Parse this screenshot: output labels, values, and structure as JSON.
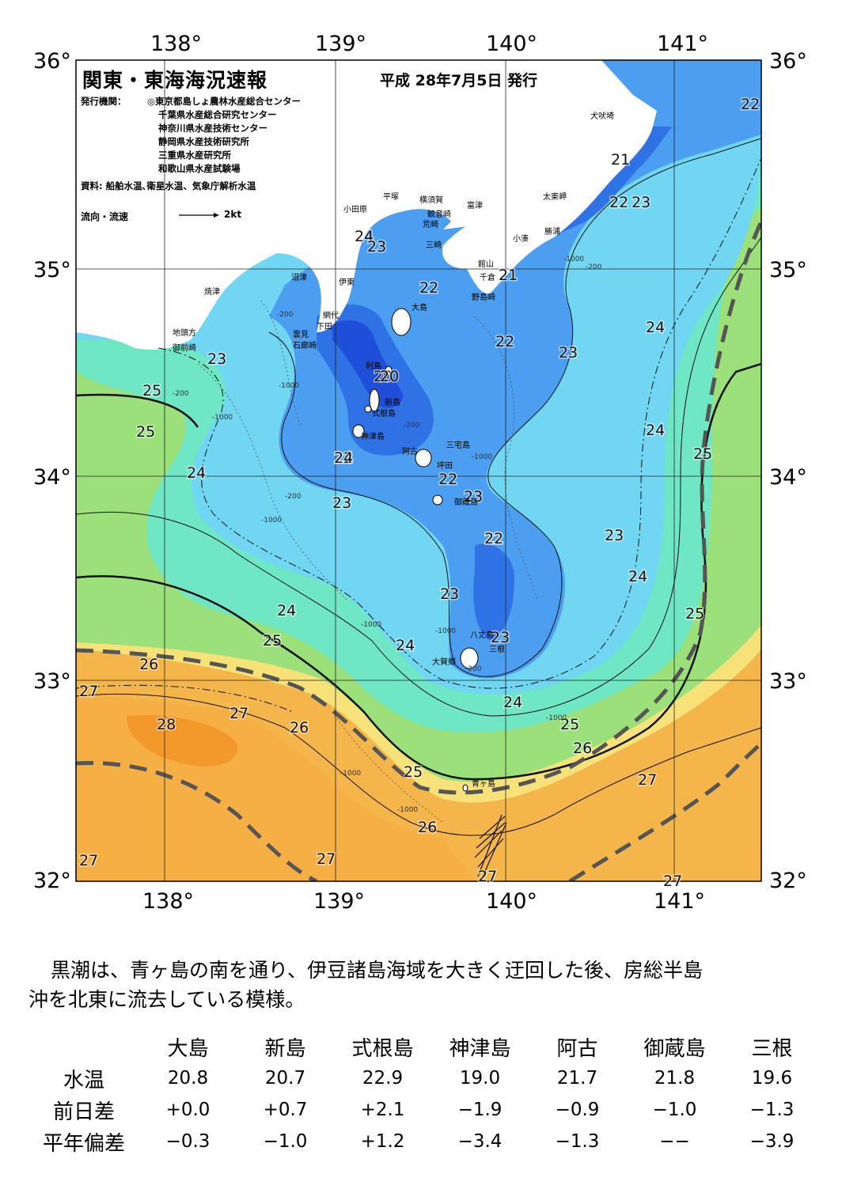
{
  "header": {
    "title": "関東・東海海況速報",
    "date": "平成 28年7月5日 発行",
    "issuer_label": "発行機関：",
    "issuers": [
      "◎東京都島しょ農林水産総合センター",
      "千葉県水産総合研究センター",
      "神奈川県水産技術センター",
      "静岡県水産技術研究所",
      "三重県水産研究所",
      "和歌山県水産試験場"
    ],
    "source": "資料: 船舶水温､衛星水温、気象庁解析水温",
    "legend_label": "流向・流速",
    "legend_value": "2kt"
  },
  "axes": {
    "lon_top": [
      "138°",
      "139°",
      "140°",
      "141°"
    ],
    "lon_bottom": [
      "138°",
      "139°",
      "140°",
      "141°"
    ],
    "lat_left": [
      "36°",
      "35°",
      "34°",
      "33°",
      "32°"
    ],
    "lat_right": [
      "36°",
      "35°",
      "34°",
      "33°",
      "32°"
    ]
  },
  "contour_labels": [
    "22",
    "21",
    "22",
    "23",
    "24",
    "23",
    "22",
    "21",
    "24",
    "22",
    "20",
    "22",
    "23",
    "24",
    "23",
    "25",
    "25",
    "20",
    "24",
    "24",
    "22",
    "22",
    "25",
    "23",
    "23",
    "24",
    "22",
    "23",
    "25",
    "24",
    "23",
    "24",
    "25",
    "24",
    "23",
    "25",
    "26",
    "27",
    "27",
    "28",
    "26",
    "27",
    "25",
    "26",
    "27",
    "26",
    "27",
    "27",
    "27"
  ],
  "place_names": [
    "犬吠埼",
    "太東岬",
    "勝浦",
    "小湊",
    "館山",
    "千倉",
    "野島崎",
    "富津",
    "横須賀",
    "観音崎",
    "平塚",
    "荒崎",
    "三崎",
    "小田原",
    "沼津",
    "伊東",
    "焼津",
    "地頭方",
    "御前崎",
    "網代",
    "下田",
    "雲見",
    "石廊崎",
    "大島",
    "利島",
    "新島",
    "式根島",
    "神津島",
    "三宅島",
    "阿古",
    "坪田",
    "御蔵島",
    "八丈島",
    "三根",
    "大賀郷",
    "青ヶ島"
  ],
  "depth_labels": [
    "-200",
    "-1000",
    "-200",
    "-1000",
    "-1000",
    "-200",
    "-1000",
    "-200",
    "-1000",
    "-1000",
    "-1000",
    "-200",
    "-1000",
    "-1000",
    "-1000",
    "-200"
  ],
  "caption": {
    "line1": "黒潮は、青ヶ島の南を通り、伊豆諸島海域を大きく迂回した後、房総半島",
    "line2": "沖を北東に流去している模様。"
  },
  "table": {
    "columns": [
      "大島",
      "新島",
      "式根島",
      "神津島",
      "阿古",
      "御蔵島",
      "三根"
    ],
    "rows": [
      {
        "label": "水温",
        "values": [
          "20.8",
          "20.7",
          "22.9",
          "19.0",
          "21.7",
          "21.8",
          "19.6"
        ]
      },
      {
        "label": "前日差",
        "values": [
          "+0.0",
          "+0.7",
          "+2.1",
          "−1.9",
          "−0.9",
          "−1.0",
          "−1.3"
        ]
      },
      {
        "label": "平年偏差",
        "values": [
          "−0.3",
          "−1.0",
          "+1.2",
          "−3.4",
          "−1.3",
          "−−",
          "−3.9"
        ]
      }
    ]
  },
  "colors": {
    "t20": "#1f4fd8",
    "t21": "#2f72e6",
    "t22": "#4c9ef0",
    "t23": "#74d8f5",
    "t24": "#7cf0d0",
    "t25": "#7fe08a",
    "t26": "#d8ee7a",
    "t27": "#f4b64a",
    "t28": "#f08a18",
    "land": "#ffffff",
    "kuroshio_axis": "#555555"
  }
}
